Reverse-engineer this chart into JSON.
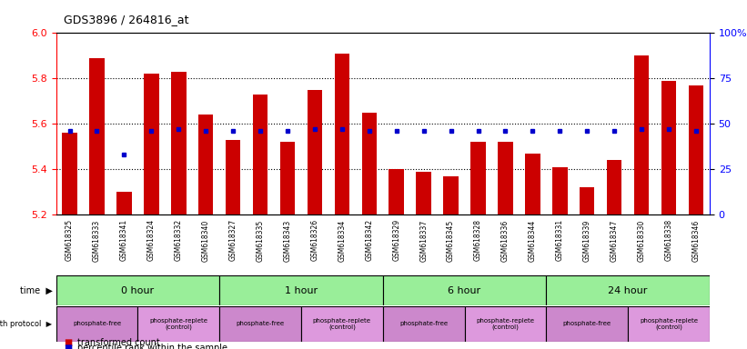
{
  "title": "GDS3896 / 264816_at",
  "samples": [
    "GSM618325",
    "GSM618333",
    "GSM618341",
    "GSM618324",
    "GSM618332",
    "GSM618340",
    "GSM618327",
    "GSM618335",
    "GSM618343",
    "GSM618326",
    "GSM618334",
    "GSM618342",
    "GSM618329",
    "GSM618337",
    "GSM618345",
    "GSM618328",
    "GSM618336",
    "GSM618344",
    "GSM618331",
    "GSM618339",
    "GSM618347",
    "GSM618330",
    "GSM618338",
    "GSM618346"
  ],
  "red_values": [
    5.56,
    5.89,
    5.3,
    5.82,
    5.83,
    5.64,
    5.53,
    5.73,
    5.52,
    5.75,
    5.91,
    5.65,
    5.4,
    5.39,
    5.37,
    5.52,
    5.52,
    5.47,
    5.41,
    5.32,
    5.44,
    5.9,
    5.79,
    5.77
  ],
  "blue_pct": [
    46,
    46,
    33,
    46,
    47,
    46,
    46,
    46,
    46,
    47,
    47,
    46,
    46,
    46,
    46,
    46,
    46,
    46,
    46,
    46,
    46,
    47,
    47,
    46
  ],
  "ymin": 5.2,
  "ymax": 6.0,
  "yticks": [
    5.2,
    5.4,
    5.6,
    5.8,
    6.0
  ],
  "right_yticks": [
    0,
    25,
    50,
    75,
    100
  ],
  "bar_color": "#cc0000",
  "dot_color": "#0000cc",
  "time_groups": [
    {
      "label": "0 hour",
      "start": 0,
      "end": 6
    },
    {
      "label": "1 hour",
      "start": 6,
      "end": 12
    },
    {
      "label": "6 hour",
      "start": 12,
      "end": 18
    },
    {
      "label": "24 hour",
      "start": 18,
      "end": 24
    }
  ],
  "protocol_groups": [
    {
      "label": "phosphate-free",
      "start": 0,
      "end": 3,
      "type": "free"
    },
    {
      "label": "phosphate-replete\n(control)",
      "start": 3,
      "end": 6,
      "type": "replete"
    },
    {
      "label": "phosphate-free",
      "start": 6,
      "end": 9,
      "type": "free"
    },
    {
      "label": "phosphate-replete\n(control)",
      "start": 9,
      "end": 12,
      "type": "replete"
    },
    {
      "label": "phosphate-free",
      "start": 12,
      "end": 15,
      "type": "free"
    },
    {
      "label": "phosphate-replete\n(control)",
      "start": 15,
      "end": 18,
      "type": "replete"
    },
    {
      "label": "phosphate-free",
      "start": 18,
      "end": 21,
      "type": "free"
    },
    {
      "label": "phosphate-replete\n(control)",
      "start": 21,
      "end": 24,
      "type": "replete"
    }
  ],
  "time_color": "#99ee99",
  "free_color": "#cc88cc",
  "replete_color": "#dd99dd",
  "sample_bg_color": "#cccccc",
  "legend_red": "transformed count",
  "legend_blue": "percentile rank within the sample",
  "grid_lines": [
    5.4,
    5.6,
    5.8
  ]
}
